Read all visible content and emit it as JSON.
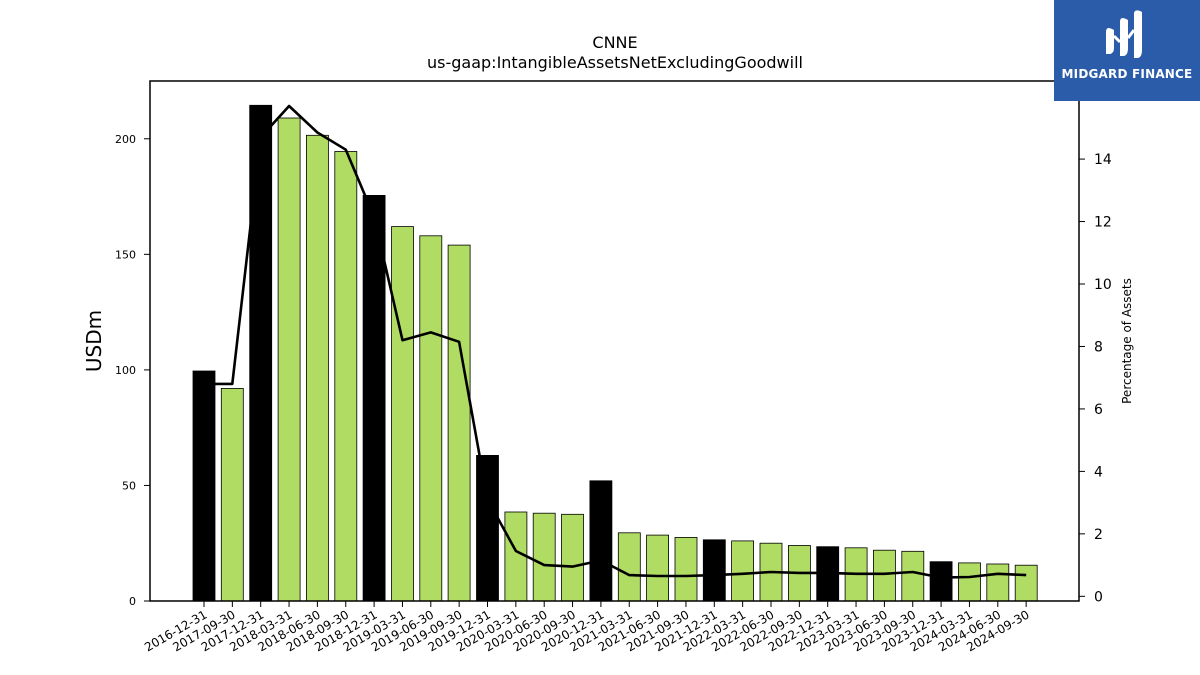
{
  "chart_data": {
    "type": "bar",
    "title": "CNNE",
    "subtitle": "us-gaap:IntangibleAssetsNetExcludingGoodwill",
    "ylabel": "USDm",
    "y2label": "Percentage of Assets",
    "ylim": [
      0,
      225
    ],
    "y2lim": [
      -0.15,
      16.5
    ],
    "yticks": [
      0,
      50,
      100,
      150,
      200
    ],
    "y2ticks": [
      0,
      2,
      4,
      6,
      8,
      10,
      12,
      14
    ],
    "categories": [
      "2016-12-31",
      "2017-09-30",
      "2017-12-31",
      "2018-03-31",
      "2018-06-30",
      "2018-09-30",
      "2018-12-31",
      "2019-03-31",
      "2019-06-30",
      "2019-09-30",
      "2019-12-31",
      "2020-03-31",
      "2020-06-30",
      "2020-09-30",
      "2020-12-31",
      "2021-03-31",
      "2021-06-30",
      "2021-09-30",
      "2021-12-31",
      "2022-03-31",
      "2022-06-30",
      "2022-09-30",
      "2022-12-31",
      "2023-03-31",
      "2023-06-30",
      "2023-09-30",
      "2023-12-31",
      "2024-03-31",
      "2024-06-30",
      "2024-09-30"
    ],
    "series": [
      {
        "type": "bar",
        "values": [
          99.5,
          92,
          214.5,
          209,
          201.5,
          194.5,
          175.5,
          162,
          158,
          154,
          63,
          38.5,
          38,
          37.5,
          52,
          29.5,
          28.5,
          27.5,
          26.5,
          26,
          25,
          24,
          23.5,
          23,
          22,
          21.5,
          17,
          16.5,
          16,
          15.5
        ],
        "annual": [
          true,
          false,
          true,
          false,
          false,
          false,
          true,
          false,
          false,
          false,
          true,
          false,
          false,
          false,
          true,
          false,
          false,
          false,
          true,
          false,
          false,
          false,
          true,
          false,
          false,
          false,
          true,
          false,
          false,
          false
        ]
      },
      {
        "type": "line",
        "axis": "right",
        "values": [
          6.8,
          6.8,
          14.7,
          15.7,
          14.85,
          14.3,
          12.15,
          8.2,
          8.45,
          8.15,
          3.1,
          1.45,
          1.0,
          0.95,
          1.15,
          0.68,
          0.65,
          0.65,
          0.68,
          0.72,
          0.78,
          0.75,
          0.75,
          0.72,
          0.72,
          0.78,
          0.6,
          0.62,
          0.72,
          0.68
        ]
      }
    ],
    "colors": {
      "annual_bar": "#000000",
      "quarter_bar": "#b0dc64",
      "bar_edge": "#000000",
      "line": "#000000"
    },
    "grid": false,
    "legend": "none"
  },
  "logo": {
    "text": "MIDGARD FINANCE",
    "background": "#2a5caa"
  }
}
